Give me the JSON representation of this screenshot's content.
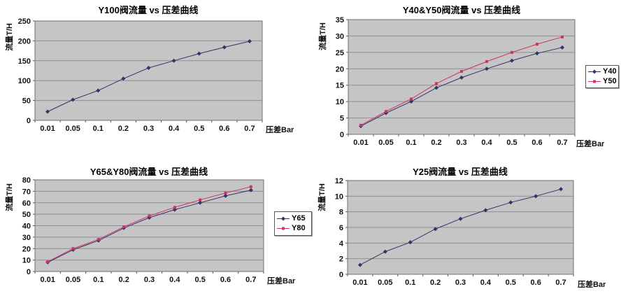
{
  "page": {
    "background": "#ffffff"
  },
  "chart_data": [
    {
      "type": "line",
      "title": "Y100阀流量 vs 压差曲线",
      "ylabel": "流量T/H",
      "xlabel": "压差Bar",
      "categories": [
        "0.01",
        "0.05",
        "0.1",
        "0.2",
        "0.3",
        "0.4",
        "0.5",
        "0.6",
        "0.7"
      ],
      "ylim": [
        0,
        250
      ],
      "ytick_step": 50,
      "grid": true,
      "legend": false,
      "plot_bg": "#c5c5c5",
      "grid_color": "#8f8f8f",
      "border_color": "#6f6f6f",
      "series": [
        {
          "name": "Y100",
          "color": "#333366",
          "marker": "diamond",
          "values": [
            22,
            52,
            75,
            105,
            132,
            150,
            168,
            184,
            199
          ]
        }
      ]
    },
    {
      "type": "line",
      "title": "Y40&Y50阀流量 vs 压差曲线",
      "ylabel": "流量T/H",
      "xlabel": "压差Bar",
      "categories": [
        "0.01",
        "0.05",
        "0.1",
        "0.2",
        "0.3",
        "0.4",
        "0.5",
        "0.6",
        "0.7"
      ],
      "ylim": [
        0,
        35
      ],
      "ytick_step": 5,
      "grid": true,
      "legend": true,
      "legend_position": "right",
      "plot_bg": "#c5c5c5",
      "grid_color": "#8f8f8f",
      "border_color": "#6f6f6f",
      "series": [
        {
          "name": "Y40",
          "color": "#333366",
          "marker": "diamond",
          "values": [
            2.5,
            6.5,
            10,
            14.2,
            17.3,
            20,
            22.5,
            24.7,
            26.5
          ]
        },
        {
          "name": "Y50",
          "color": "#cc3366",
          "marker": "square",
          "values": [
            2.8,
            7,
            10.8,
            15.5,
            19.2,
            22.2,
            25,
            27.5,
            29.7
          ]
        }
      ]
    },
    {
      "type": "line",
      "title": "Y65&Y80阀流量 vs 压差曲线",
      "ylabel": "流量T/H",
      "xlabel": "压差Bar",
      "categories": [
        "0.01",
        "0.05",
        "0.1",
        "0.2",
        "0.3",
        "0.4",
        "0.5",
        "0.6",
        "0.7"
      ],
      "ylim": [
        0,
        80
      ],
      "ytick_step": 10,
      "grid": true,
      "legend": true,
      "legend_position": "right",
      "plot_bg": "#c5c5c5",
      "grid_color": "#8f8f8f",
      "border_color": "#6f6f6f",
      "series": [
        {
          "name": "Y65",
          "color": "#333366",
          "marker": "diamond",
          "values": [
            8,
            19,
            27,
            38,
            47,
            54,
            60,
            66,
            71
          ]
        },
        {
          "name": "Y80",
          "color": "#cc3366",
          "marker": "square",
          "values": [
            8.5,
            20,
            28,
            39,
            48.5,
            56,
            62.5,
            68.5,
            74
          ]
        }
      ]
    },
    {
      "type": "line",
      "title": "Y25阀流量 vs 压差曲线",
      "ylabel": "流量T/H",
      "xlabel": "压差Bar",
      "categories": [
        "0.01",
        "0.05",
        "0.1",
        "0.2",
        "0.3",
        "0.4",
        "0.5",
        "0.6",
        "0.7"
      ],
      "ylim": [
        0,
        12
      ],
      "ytick_step": 2,
      "grid": true,
      "legend": false,
      "plot_bg": "#c5c5c5",
      "grid_color": "#8f8f8f",
      "border_color": "#6f6f6f",
      "series": [
        {
          "name": "Y25",
          "color": "#333366",
          "marker": "diamond",
          "values": [
            1.2,
            2.9,
            4.1,
            5.8,
            7.1,
            8.2,
            9.2,
            10,
            10.9
          ]
        }
      ]
    }
  ]
}
